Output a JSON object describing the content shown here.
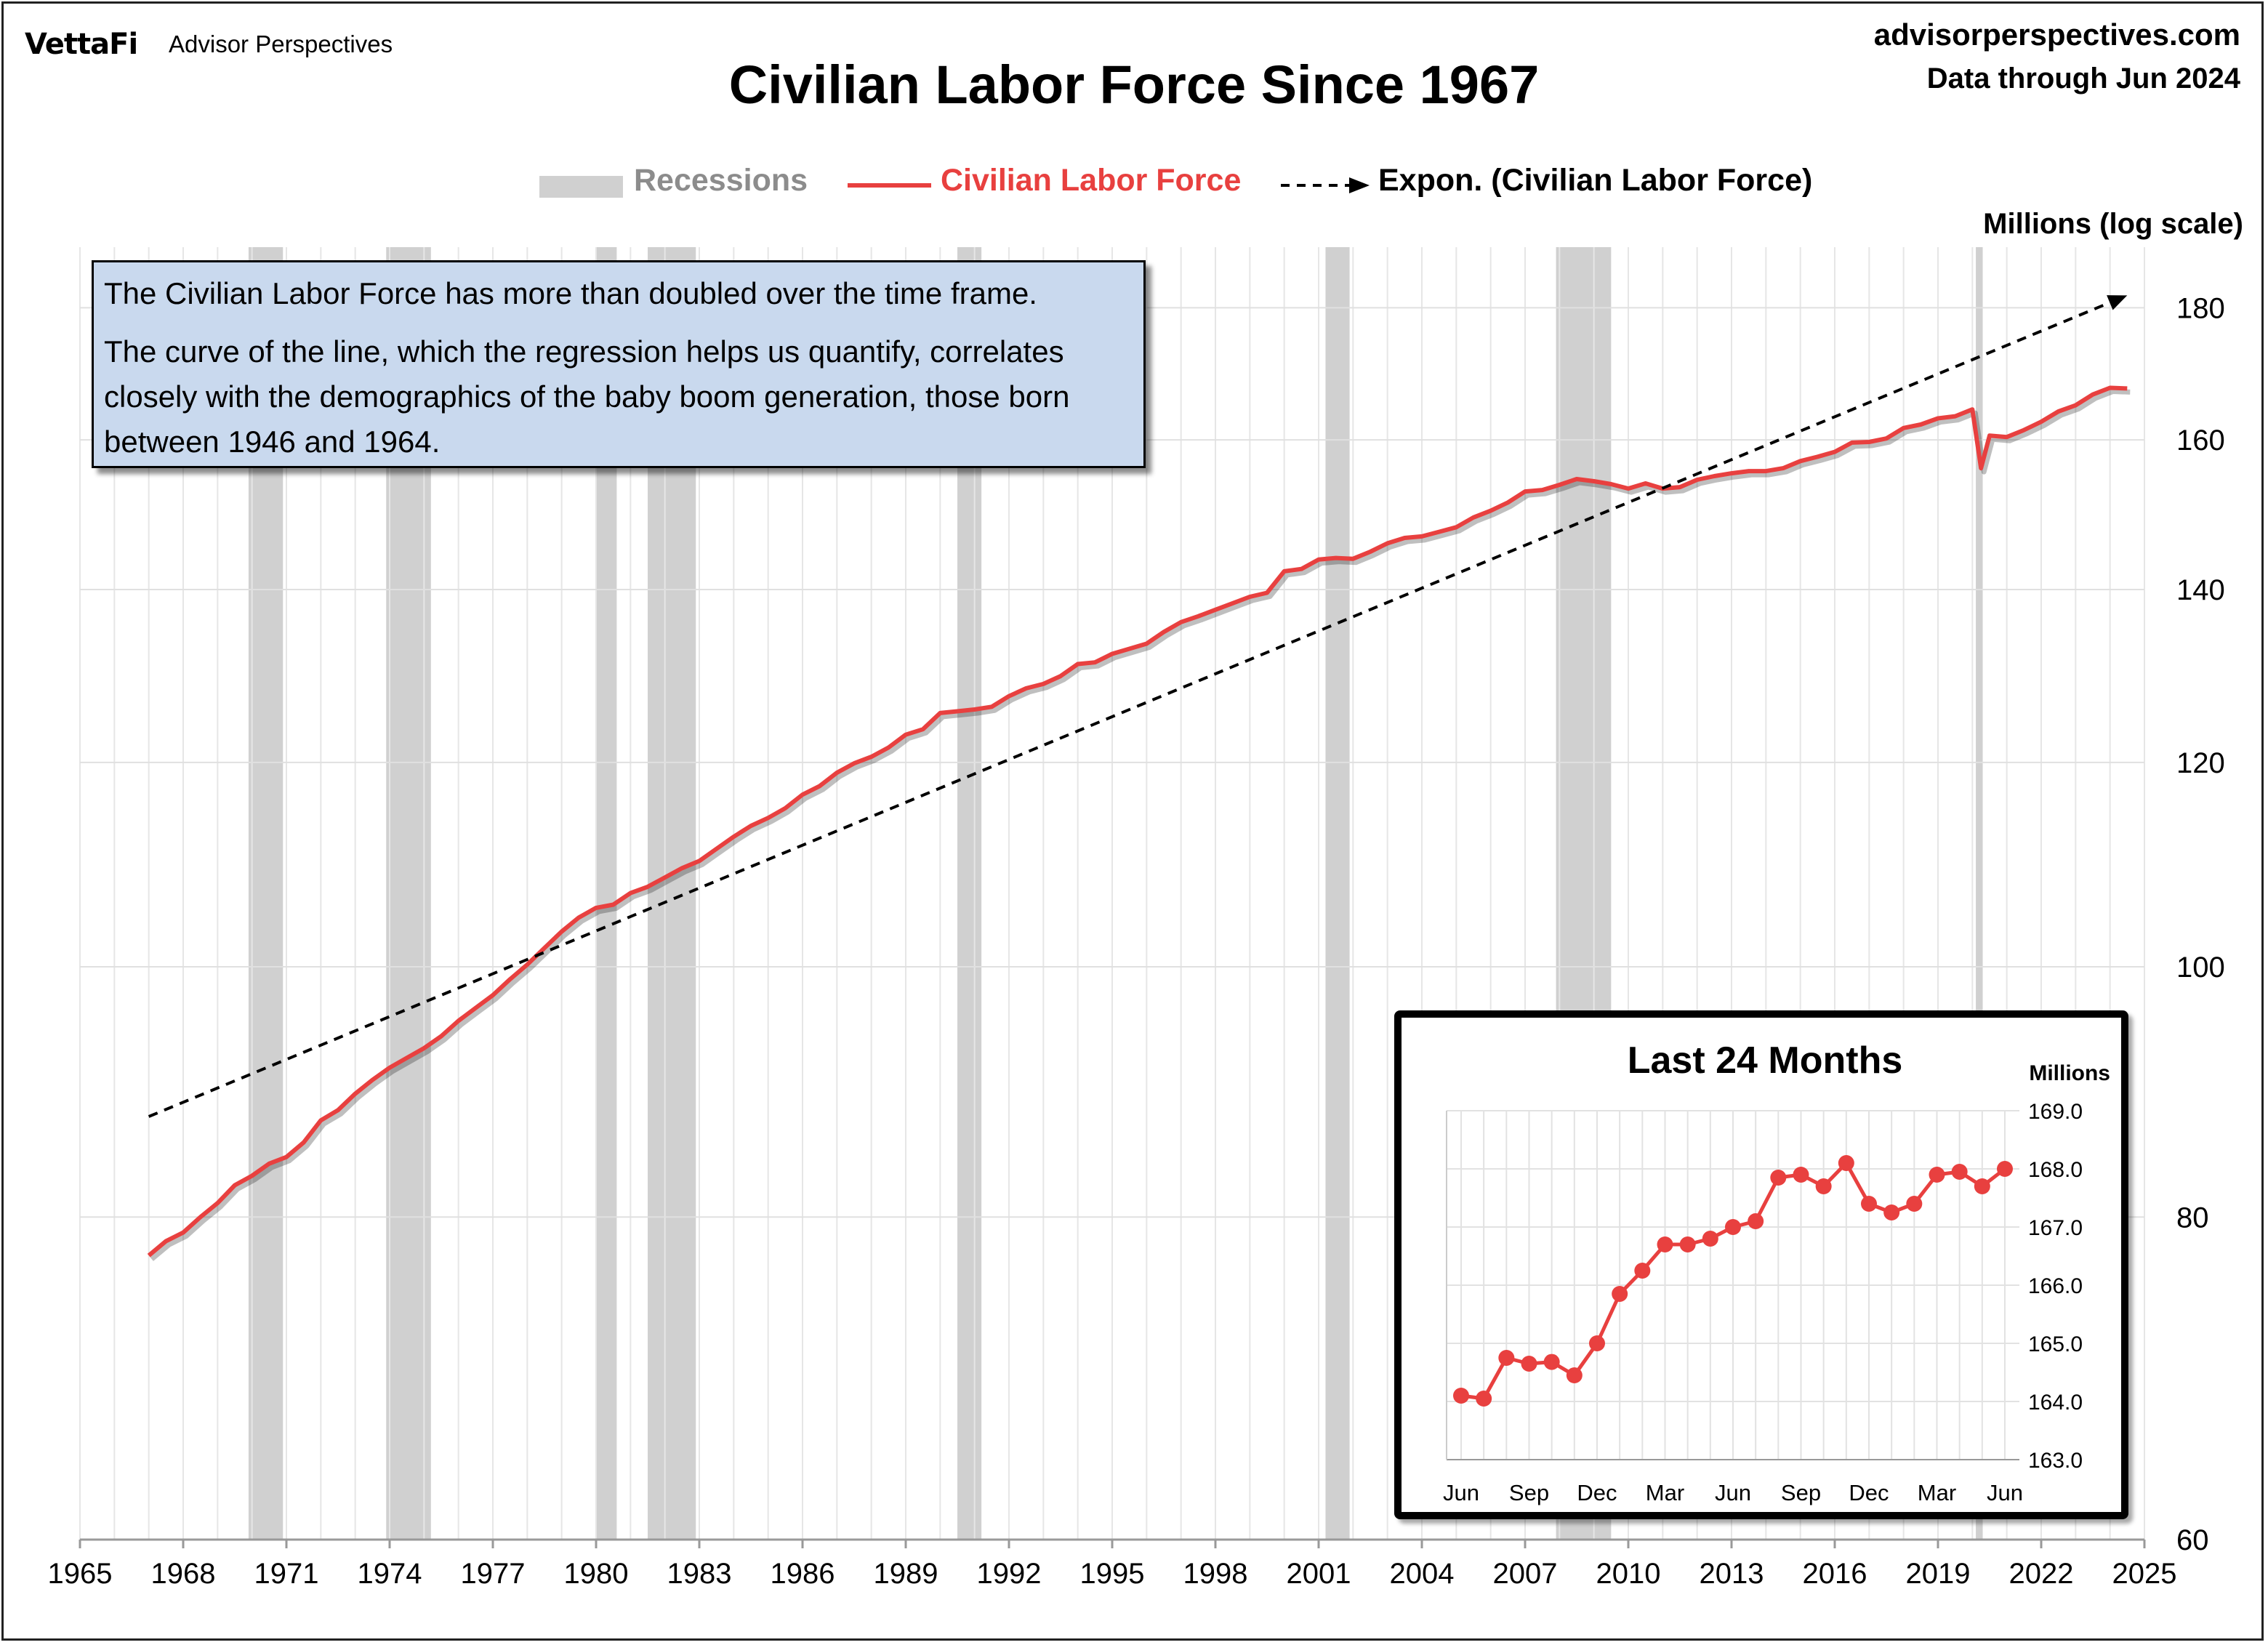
{
  "header": {
    "brand": "VettaFi",
    "brand_sub": "Advisor Perspectives",
    "site": "advisorperspectives.com",
    "data_through": "Data through Jun 2024"
  },
  "chart_data": [
    {
      "type": "line",
      "title": "Civilian Labor Force Since 1967",
      "ylabel": "Millions (log scale)",
      "yscale": "log",
      "ylim": [
        60,
        190
      ],
      "yticks": [
        60,
        80,
        100,
        120,
        140,
        160,
        180
      ],
      "xlim": [
        1965,
        2025
      ],
      "xticks": [
        1965,
        1968,
        1971,
        1974,
        1977,
        1980,
        1983,
        1986,
        1989,
        1992,
        1995,
        1998,
        2001,
        2004,
        2007,
        2010,
        2013,
        2016,
        2019,
        2022,
        2025
      ],
      "grid": true,
      "legend_position": "top-center",
      "legend": [
        {
          "label": "Recessions",
          "color": "#d0d0d0"
        },
        {
          "label": "Civilian Labor Force",
          "color": "#e8403f"
        },
        {
          "label": "Expon. (Civilian Labor Force)",
          "color": "#000000"
        }
      ],
      "recessions": [
        [
          1969.9,
          1970.9
        ],
        [
          1973.9,
          1975.2
        ],
        [
          1980.0,
          1980.6
        ],
        [
          1981.5,
          1982.9
        ],
        [
          1990.5,
          1991.2
        ],
        [
          2001.2,
          2001.9
        ],
        [
          2007.9,
          2009.5
        ],
        [
          2020.1,
          2020.3
        ]
      ],
      "series": [
        {
          "name": "Civilian Labor Force",
          "color": "#e8403f",
          "x": [
            1967.0,
            1967.5,
            1968.0,
            1968.5,
            1969.0,
            1969.5,
            1970.0,
            1970.5,
            1971.0,
            1971.5,
            1972.0,
            1972.5,
            1973.0,
            1973.5,
            1974.0,
            1974.5,
            1975.0,
            1975.5,
            1976.0,
            1976.5,
            1977.0,
            1977.5,
            1978.0,
            1978.5,
            1979.0,
            1979.5,
            1980.0,
            1980.5,
            1981.0,
            1981.5,
            1982.0,
            1982.5,
            1983.0,
            1983.5,
            1984.0,
            1984.5,
            1985.0,
            1985.5,
            1986.0,
            1986.5,
            1987.0,
            1987.5,
            1988.0,
            1988.5,
            1989.0,
            1989.5,
            1990.0,
            1990.5,
            1991.0,
            1991.5,
            1992.0,
            1992.5,
            1993.0,
            1993.5,
            1994.0,
            1994.5,
            1995.0,
            1995.5,
            1996.0,
            1996.5,
            1997.0,
            1997.5,
            1998.0,
            1998.5,
            1999.0,
            1999.5,
            2000.0,
            2000.5,
            2001.0,
            2001.5,
            2002.0,
            2002.5,
            2003.0,
            2003.5,
            2004.0,
            2004.5,
            2005.0,
            2005.5,
            2006.0,
            2006.5,
            2007.0,
            2007.5,
            2008.0,
            2008.5,
            2009.0,
            2009.5,
            2010.0,
            2010.5,
            2011.0,
            2011.5,
            2012.0,
            2012.5,
            2013.0,
            2013.5,
            2014.0,
            2014.5,
            2015.0,
            2015.5,
            2016.0,
            2016.5,
            2017.0,
            2017.5,
            2018.0,
            2018.5,
            2019.0,
            2019.5,
            2020.0,
            2020.25,
            2020.5,
            2021.0,
            2021.5,
            2022.0,
            2022.5,
            2023.0,
            2023.5,
            2024.0,
            2024.5
          ],
          "values": [
            77.3,
            78.3,
            78.9,
            80.0,
            81.0,
            82.3,
            83.0,
            83.9,
            84.4,
            85.5,
            87.2,
            88.0,
            89.3,
            90.4,
            91.4,
            92.2,
            93.0,
            94.0,
            95.3,
            96.4,
            97.5,
            98.9,
            100.2,
            101.7,
            103.2,
            104.5,
            105.4,
            105.7,
            106.8,
            107.4,
            108.3,
            109.2,
            109.9,
            111.1,
            112.3,
            113.4,
            114.2,
            115.2,
            116.6,
            117.5,
            118.9,
            119.9,
            120.6,
            121.6,
            123.0,
            123.6,
            125.4,
            125.6,
            125.8,
            126.1,
            127.3,
            128.2,
            128.7,
            129.6,
            131.0,
            131.2,
            132.2,
            132.8,
            133.4,
            134.8,
            136.0,
            136.7,
            137.5,
            138.3,
            139.1,
            139.6,
            142.3,
            142.6,
            143.8,
            144.0,
            143.9,
            144.8,
            145.9,
            146.6,
            146.8,
            147.4,
            148.0,
            149.3,
            150.2,
            151.3,
            152.8,
            153.0,
            153.7,
            154.5,
            154.2,
            153.8,
            153.2,
            153.9,
            153.2,
            153.4,
            154.4,
            154.9,
            155.3,
            155.6,
            155.6,
            156.0,
            157.0,
            157.6,
            158.3,
            159.6,
            159.7,
            160.2,
            161.7,
            162.2,
            163.1,
            163.4,
            164.4,
            156.0,
            160.6,
            160.4,
            161.4,
            162.6,
            164.1,
            165.0,
            166.6,
            167.6,
            167.5
          ]
        },
        {
          "name": "Expon. (Civilian Labor Force)",
          "style": "dashed",
          "color": "#000000",
          "x": [
            1967.0,
            2024.5
          ],
          "values": [
            87.5,
            182.0
          ]
        }
      ],
      "annotation": {
        "line1": "The Civilian Labor Force has more than doubled over the time frame.",
        "line2": "The curve of the line, which the regression helps us quantify, correlates closely with the demographics of the baby boom generation, those born between 1946 and 1964."
      }
    },
    {
      "type": "line",
      "title": "Last 24 Months",
      "ylabel": "Millions",
      "ylim": [
        163.0,
        169.0
      ],
      "yticks": [
        "169.0",
        "168.0",
        "167.0",
        "166.0",
        "165.0",
        "164.0",
        "163.0"
      ],
      "xtick_labels": [
        "Jun",
        "Sep",
        "Dec",
        "Mar",
        "Jun",
        "Sep",
        "Dec",
        "Mar",
        "Jun"
      ],
      "grid": true,
      "series": [
        {
          "color": "#e8403f",
          "values": [
            164.1,
            164.05,
            164.75,
            164.65,
            164.68,
            164.45,
            165.0,
            165.85,
            166.25,
            166.7,
            166.7,
            166.8,
            167.0,
            167.1,
            167.85,
            167.9,
            167.7,
            168.1,
            167.4,
            167.25,
            167.4,
            167.9,
            167.95,
            167.7,
            168.0
          ]
        }
      ]
    }
  ]
}
